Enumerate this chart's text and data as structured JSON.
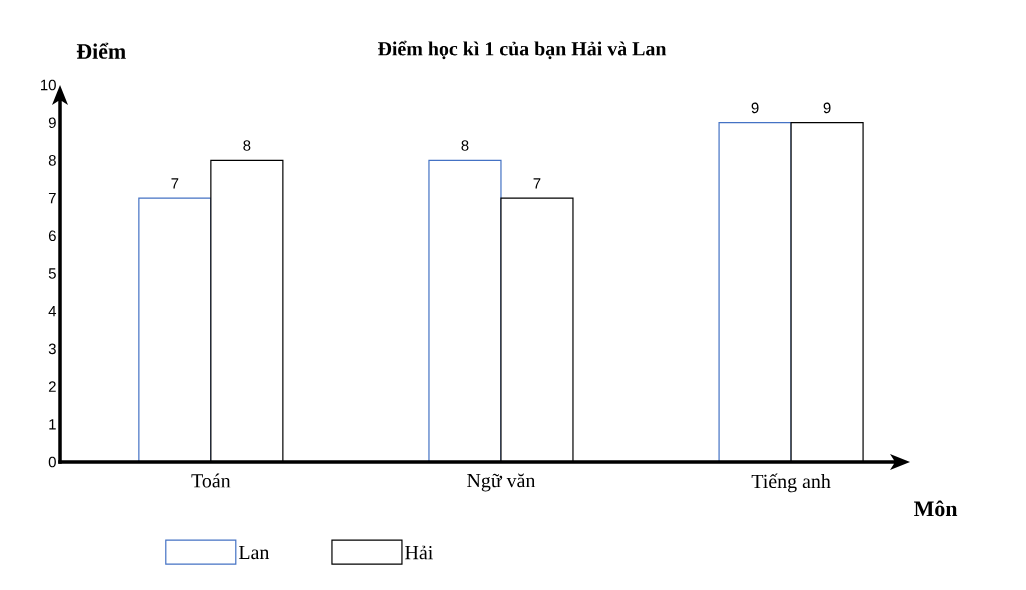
{
  "chart_data": {
    "type": "bar",
    "title": "Điểm học kì 1 của bạn Hải và Lan",
    "xlabel": "Môn",
    "ylabel": "Điểm",
    "categories": [
      "Toán",
      "Ngữ văn",
      "Tiếng anh"
    ],
    "series": [
      {
        "name": "Lan",
        "color": "#4472c4",
        "values": [
          7,
          8,
          9
        ]
      },
      {
        "name": "Hải",
        "color": "#000000",
        "values": [
          8,
          7,
          9
        ]
      }
    ],
    "ylim": [
      0,
      10
    ],
    "yticks": [
      0,
      1,
      2,
      3,
      4,
      5,
      6,
      7,
      8,
      9,
      10
    ],
    "grid": false,
    "legend": "bottom",
    "data_labels": true
  }
}
